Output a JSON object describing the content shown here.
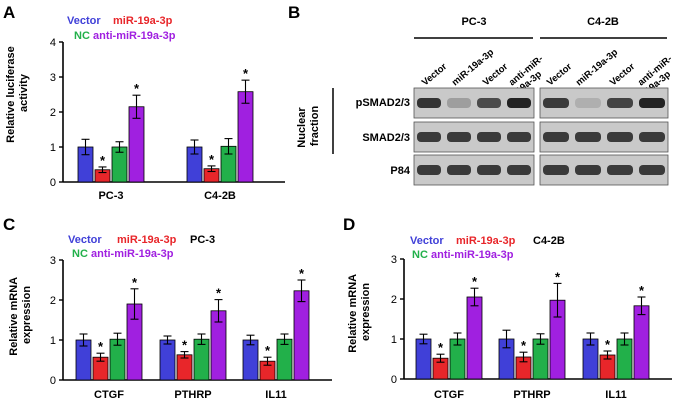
{
  "colors": {
    "vector": "#4040d8",
    "mir": "#e8262a",
    "nc": "#22b04a",
    "anti": "#a020e0",
    "axis": "#000000"
  },
  "legend_labels": {
    "vector": "Vector",
    "mir": "miR-19a-3p",
    "nc": "NC",
    "anti": "anti-miR-19a-3p"
  },
  "chart_data": [
    {
      "panel": "A",
      "type": "bar",
      "title": "",
      "ylabel": "Relative luciferase activity",
      "ylim": [
        0,
        4
      ],
      "yticks": [
        "0",
        "1",
        "2",
        "3",
        "4"
      ],
      "categories": [
        "PC-3",
        "C4-2B"
      ],
      "series": [
        {
          "name": "Vector",
          "values": [
            1.0,
            1.0
          ],
          "errors": [
            0.22,
            0.2
          ]
        },
        {
          "name": "miR-19a-3p",
          "values": [
            0.35,
            0.38
          ],
          "errors": [
            0.08,
            0.08
          ]
        },
        {
          "name": "NC",
          "values": [
            1.0,
            1.02
          ],
          "errors": [
            0.15,
            0.22
          ]
        },
        {
          "name": "anti-miR-19a-3p",
          "values": [
            2.15,
            2.58
          ],
          "errors": [
            0.33,
            0.33
          ]
        }
      ],
      "significance": [
        [
          false,
          true,
          false,
          true
        ],
        [
          false,
          true,
          false,
          true
        ]
      ]
    },
    {
      "panel": "C",
      "type": "bar",
      "title": "PC-3",
      "ylabel": "Relative mRNA expression",
      "ylim": [
        0,
        3
      ],
      "yticks": [
        "0",
        "1",
        "2",
        "3"
      ],
      "categories": [
        "CTGF",
        "PTHRP",
        "IL11"
      ],
      "series": [
        {
          "name": "Vector",
          "values": [
            1.0,
            1.0,
            1.0
          ],
          "errors": [
            0.15,
            0.1,
            0.12
          ]
        },
        {
          "name": "miR-19a-3p",
          "values": [
            0.57,
            0.63,
            0.47
          ],
          "errors": [
            0.1,
            0.08,
            0.1
          ]
        },
        {
          "name": "NC",
          "values": [
            1.02,
            1.02,
            1.02
          ],
          "errors": [
            0.15,
            0.13,
            0.13
          ]
        },
        {
          "name": "anti-miR-19a-3p",
          "values": [
            1.9,
            1.73,
            2.23
          ],
          "errors": [
            0.38,
            0.28,
            0.27
          ]
        }
      ],
      "significance": [
        [
          false,
          true,
          false,
          true
        ],
        [
          false,
          true,
          false,
          true
        ],
        [
          false,
          true,
          false,
          true
        ]
      ]
    },
    {
      "panel": "D",
      "type": "bar",
      "title": "C4-2B",
      "ylabel": "Relative mRNA expression",
      "ylim": [
        0,
        3
      ],
      "yticks": [
        "0",
        "1",
        "2",
        "3"
      ],
      "categories": [
        "CTGF",
        "PTHRP",
        "IL11"
      ],
      "series": [
        {
          "name": "Vector",
          "values": [
            1.0,
            1.0,
            1.0
          ],
          "errors": [
            0.12,
            0.22,
            0.15
          ]
        },
        {
          "name": "miR-19a-3p",
          "values": [
            0.52,
            0.55,
            0.6
          ],
          "errors": [
            0.1,
            0.12,
            0.1
          ]
        },
        {
          "name": "NC",
          "values": [
            1.0,
            1.0,
            1.0
          ],
          "errors": [
            0.15,
            0.13,
            0.15
          ]
        },
        {
          "name": "anti-miR-19a-3p",
          "values": [
            2.05,
            1.97,
            1.83
          ],
          "errors": [
            0.22,
            0.42,
            0.22
          ]
        }
      ],
      "significance": [
        [
          false,
          true,
          false,
          true
        ],
        [
          false,
          true,
          false,
          true
        ],
        [
          false,
          true,
          false,
          true
        ]
      ]
    }
  ],
  "blot": {
    "panel": "B",
    "groups": [
      "PC-3",
      "C4-2B"
    ],
    "lanes": [
      "Vector",
      "miR-19a-3p",
      "Vector",
      "anti-miR-19a-3p"
    ],
    "fraction_label": [
      "Nuclear",
      "fraction"
    ],
    "rows": [
      "pSMAD2/3",
      "SMAD2/3",
      "P84"
    ],
    "band_intensity": [
      [
        0.9,
        0.25,
        0.75,
        1.0,
        0.85,
        0.15,
        0.8,
        1.0
      ],
      [
        0.85,
        0.85,
        0.85,
        0.85,
        0.85,
        0.85,
        0.85,
        0.85
      ],
      [
        0.85,
        0.85,
        0.85,
        0.85,
        0.85,
        0.85,
        0.85,
        0.85
      ]
    ]
  },
  "panel_letters": {
    "a": "A",
    "b": "B",
    "c": "C",
    "d": "D"
  },
  "significance_mark": "*"
}
